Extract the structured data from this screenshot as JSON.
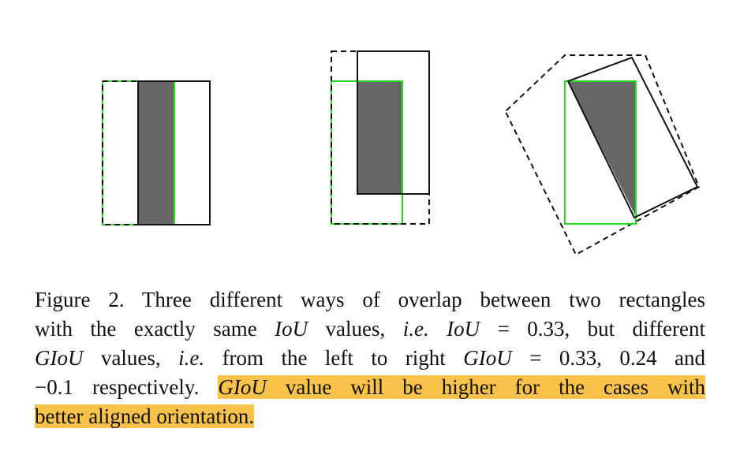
{
  "figure": {
    "colors": {
      "overlap": "#666666",
      "ground_truth": "#22dd22",
      "outline": "#111111"
    }
  },
  "caption": {
    "line1": "Figure 2. Three different ways of overlap between two rectangles",
    "line2_a": "with the exactly same ",
    "line2_iou1": "IoU",
    "line2_b": " values, ",
    "line2_ie": "i.e.",
    "line2_iou2": "IoU",
    "line2_c": " = 0.33, but different",
    "line3_giou1": "GIoU",
    "line3_b": " values, ",
    "line3_ie": "i.e.",
    "line3_c": " from the left to right ",
    "line3_giou2": "GIoU",
    "line3_d": " = 0.33, 0.24 and",
    "line4_a": "−0.1 respectively. ",
    "line4_giou": "GIoU",
    "line4_b": " value will be higher for the cases with",
    "line5": "better aligned orientation.",
    "highlight_color": "#f9c24a"
  }
}
